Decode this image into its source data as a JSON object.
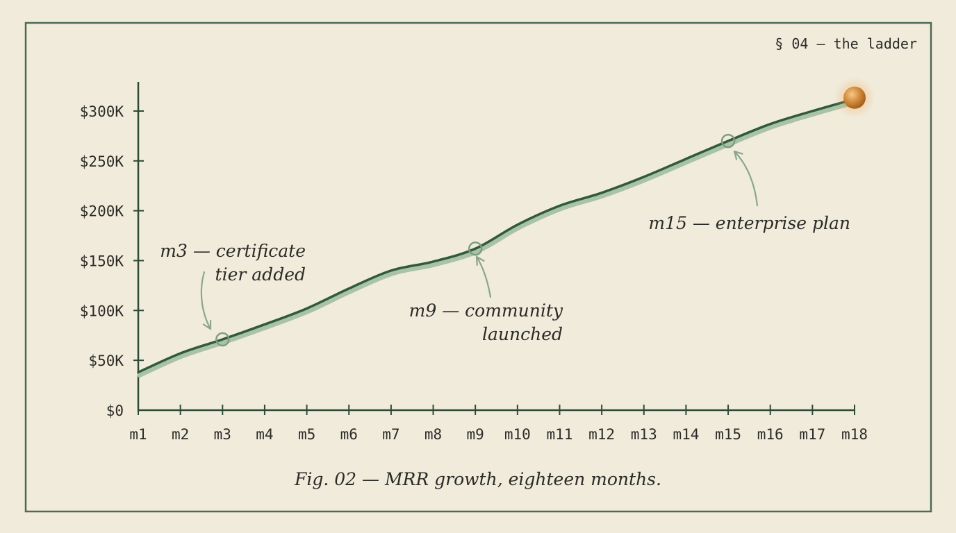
{
  "section_label": "§ 04 – the ladder",
  "caption": "Fig. 02 — MRR growth, eighteen months.",
  "colors": {
    "paper": "#f1ebdc",
    "frame": "#4d6a55",
    "line": "#2f5a3b",
    "line_shadow": "#a9c2a8",
    "marker": "#cf8636",
    "axis": "#2e4a36",
    "text": "#2b2b27"
  },
  "annotations": [
    {
      "month": "m3",
      "lines": [
        "m3 — certificate",
        "tier added"
      ]
    },
    {
      "month": "m9",
      "lines": [
        "m9 — community",
        "launched"
      ]
    },
    {
      "month": "m15",
      "lines": [
        "m15 — enterprise plan"
      ]
    }
  ],
  "chart_data": {
    "type": "line",
    "title": "",
    "xlabel": "",
    "ylabel": "",
    "categories": [
      "m1",
      "m2",
      "m3",
      "m4",
      "m5",
      "m6",
      "m7",
      "m8",
      "m9",
      "m10",
      "m11",
      "m12",
      "m13",
      "m14",
      "m15",
      "m16",
      "m17",
      "m18"
    ],
    "series": [
      {
        "values": [
          38,
          57,
          71,
          86,
          102,
          122,
          140,
          149,
          162,
          186,
          205,
          218,
          234,
          252,
          270,
          287,
          300,
          312
        ]
      }
    ],
    "y_ticks": [
      0,
      50,
      100,
      150,
      200,
      250,
      300
    ],
    "y_tick_labels": [
      "$0",
      "$50K",
      "$100K",
      "$150K",
      "$200K",
      "$250K",
      "$300K"
    ],
    "ylim": [
      0,
      330
    ],
    "grid": false,
    "highlight_points": [
      "m3",
      "m9",
      "m15"
    ],
    "endpoint_marker": "m18"
  }
}
